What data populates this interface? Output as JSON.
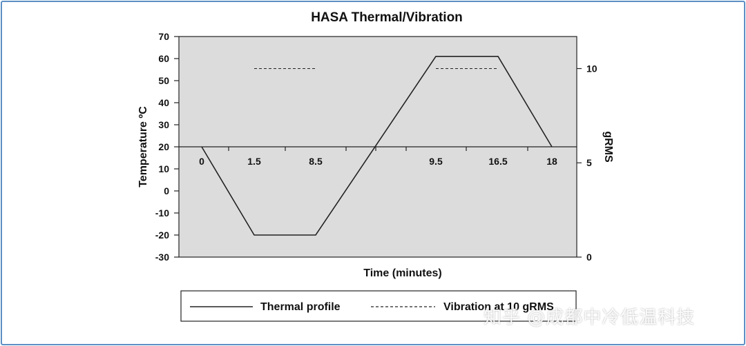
{
  "watermark": "知乎 @成都中冷低温科技",
  "colors": {
    "plot_bg": "#dcdcdc",
    "frame": "#5b8fc4",
    "line": "#222222"
  },
  "chart_data": {
    "type": "line",
    "title": "HASA Thermal/Vibration",
    "xlabel": "Time (minutes)",
    "ylabel": "Temperature ºC",
    "y2label": "gRMS",
    "ylim": [
      -30,
      70
    ],
    "y2lim": [
      0,
      11.7
    ],
    "y_ticks": [
      "70",
      "60",
      "50",
      "40",
      "30",
      "20",
      "10",
      "0",
      "-10",
      "-20",
      "-30"
    ],
    "y2_ticks": [
      "10",
      "5",
      "0"
    ],
    "x_tick_labels": [
      "0",
      "1.5",
      "8.5",
      "9.5",
      "16.5",
      "18"
    ],
    "grid": false,
    "legend_position": "bottom",
    "series": [
      {
        "name": "Thermal profile",
        "style": "solid",
        "points": [
          [
            0,
            20
          ],
          [
            1.5,
            -20
          ],
          [
            8.5,
            -20
          ],
          [
            9.5,
            61
          ],
          [
            16.5,
            61
          ],
          [
            18,
            20
          ]
        ]
      },
      {
        "name": "Vibration at 10 gRMS",
        "style": "dashed",
        "segments": [
          {
            "from": 1.5,
            "to": 8.5,
            "value": 10
          },
          {
            "from": 9.5,
            "to": 16.5,
            "value": 10
          }
        ]
      }
    ]
  }
}
